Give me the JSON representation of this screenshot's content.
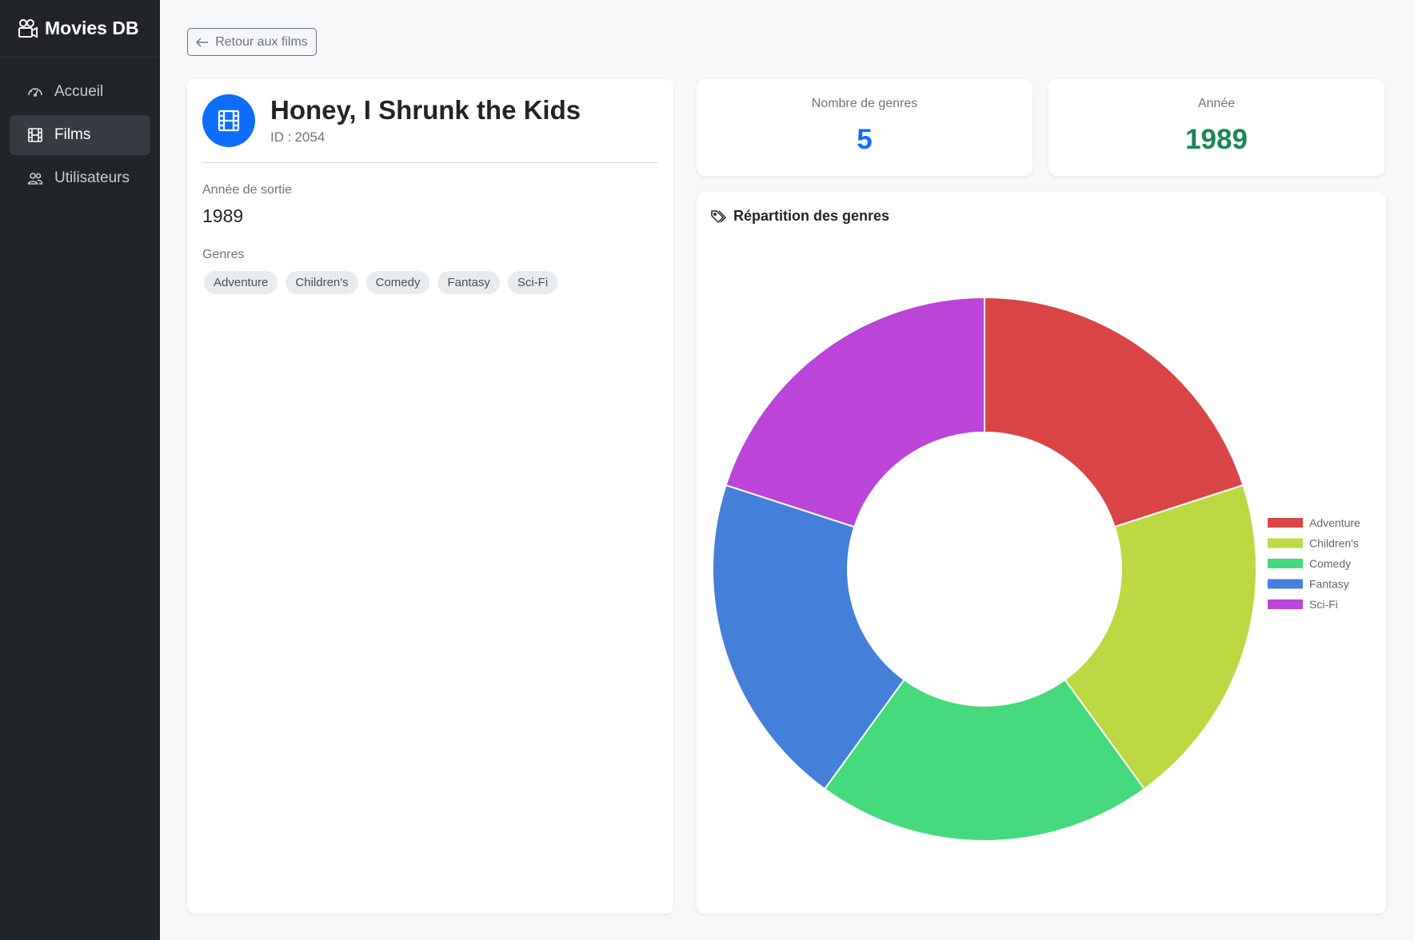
{
  "app": {
    "title": "Movies DB"
  },
  "sidebar": {
    "items": [
      {
        "label": "Accueil",
        "icon": "speedometer-icon",
        "active": false
      },
      {
        "label": "Films",
        "icon": "film-icon",
        "active": true
      },
      {
        "label": "Utilisateurs",
        "icon": "people-icon",
        "active": false
      }
    ]
  },
  "back_button": {
    "label": "Retour aux films"
  },
  "movie": {
    "title": "Honey, I Shrunk the Kids",
    "id_label": "ID :",
    "id": "2054",
    "year_label": "Année de sortie",
    "year": "1989",
    "genres_label": "Genres",
    "genres": [
      "Adventure",
      "Children's",
      "Comedy",
      "Fantasy",
      "Sci-Fi"
    ]
  },
  "stats": {
    "genre_count_label": "Nombre de genres",
    "genre_count": "5",
    "year_label": "Année",
    "year": "1989",
    "genre_count_color": "#0d6efd",
    "year_color": "#198754"
  },
  "chart_title": "Répartition des genres",
  "chart_data": {
    "type": "pie",
    "subtype": "doughnut",
    "categories": [
      "Adventure",
      "Children's",
      "Comedy",
      "Fantasy",
      "Sci-Fi"
    ],
    "values": [
      1,
      1,
      1,
      1,
      1
    ],
    "colors": [
      "#d94545",
      "#bcd944",
      "#44d97b",
      "#447fd9",
      "#bb44d9"
    ],
    "legend_position": "right"
  }
}
